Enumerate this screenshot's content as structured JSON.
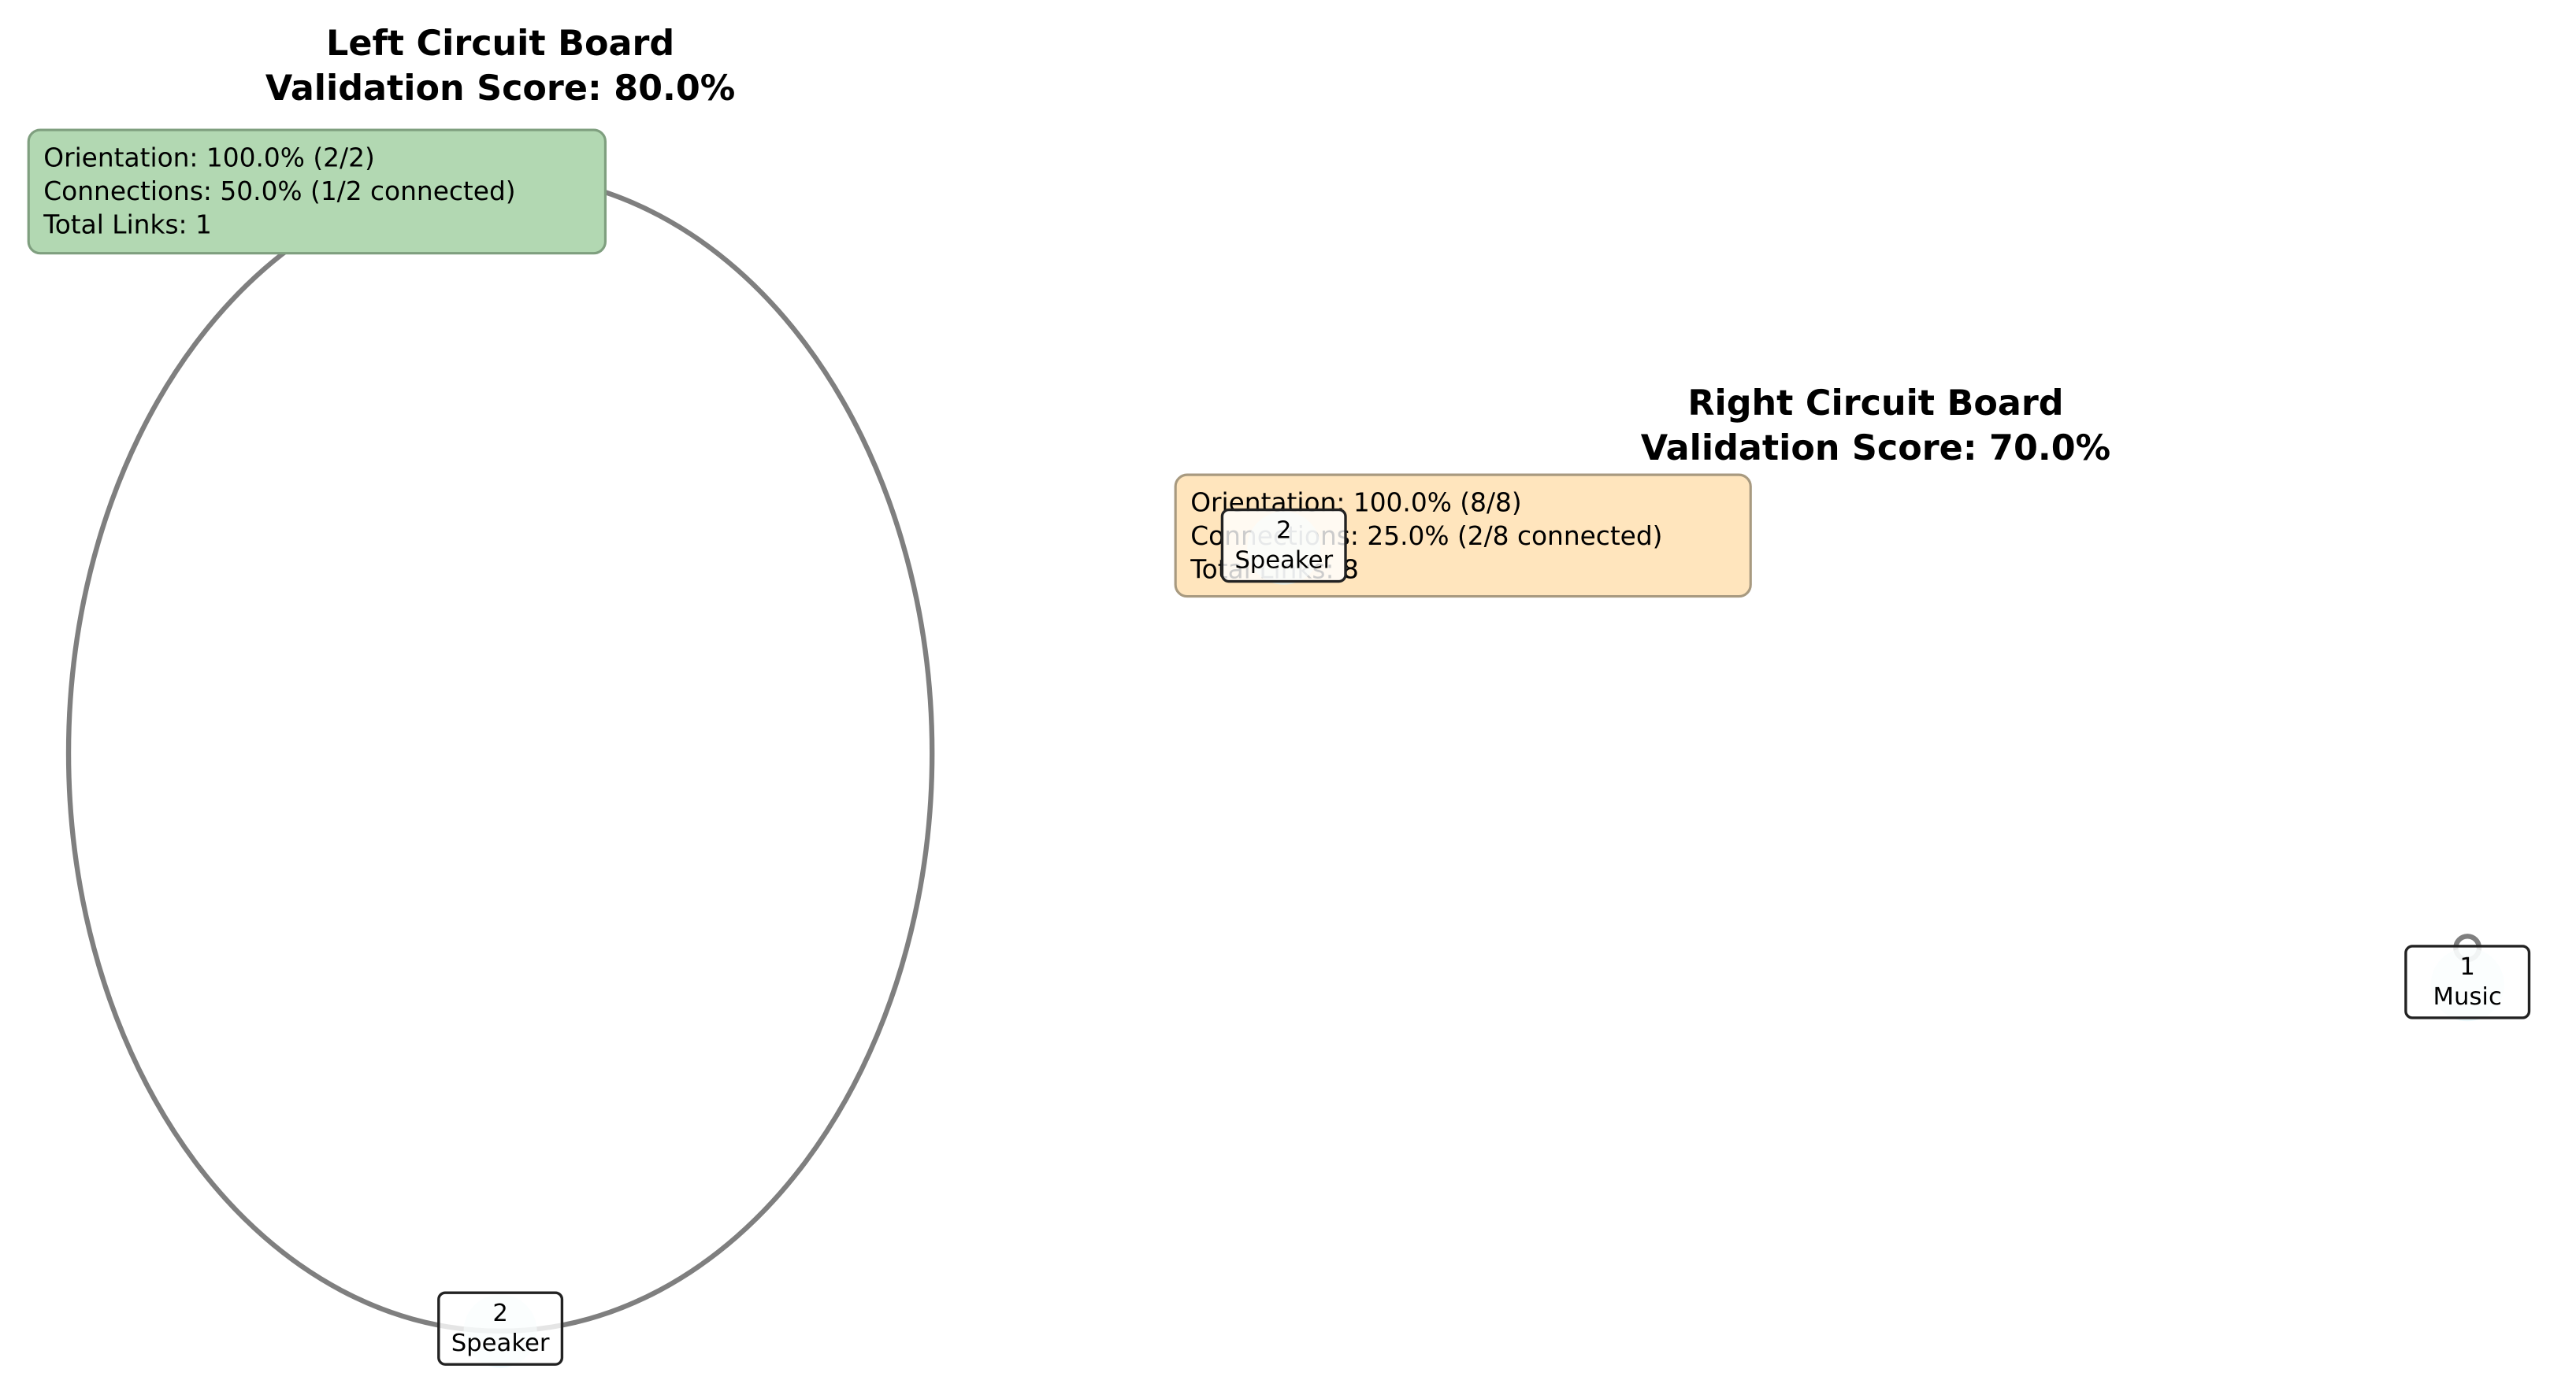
{
  "panels": [
    {
      "title": "Left Circuit Board",
      "subtitle": "Validation Score: 80.0%",
      "info": [
        "Orientation: 100.0% (2/2)",
        "Connections: 50.0% (1/2 connected)",
        "Total Links: 1"
      ],
      "nodes": [
        {
          "id": "2",
          "label": "Speaker"
        }
      ]
    },
    {
      "title": "Right Circuit Board",
      "subtitle": "Validation Score: 70.0%",
      "info": [
        "Orientation: 100.0% (8/8)",
        "Connections: 25.0% (2/8 connected)",
        "Total Links: 8"
      ],
      "nodes": [
        {
          "id": "2",
          "label": "Speaker"
        },
        {
          "id": "1",
          "label": "Music"
        }
      ]
    }
  ]
}
